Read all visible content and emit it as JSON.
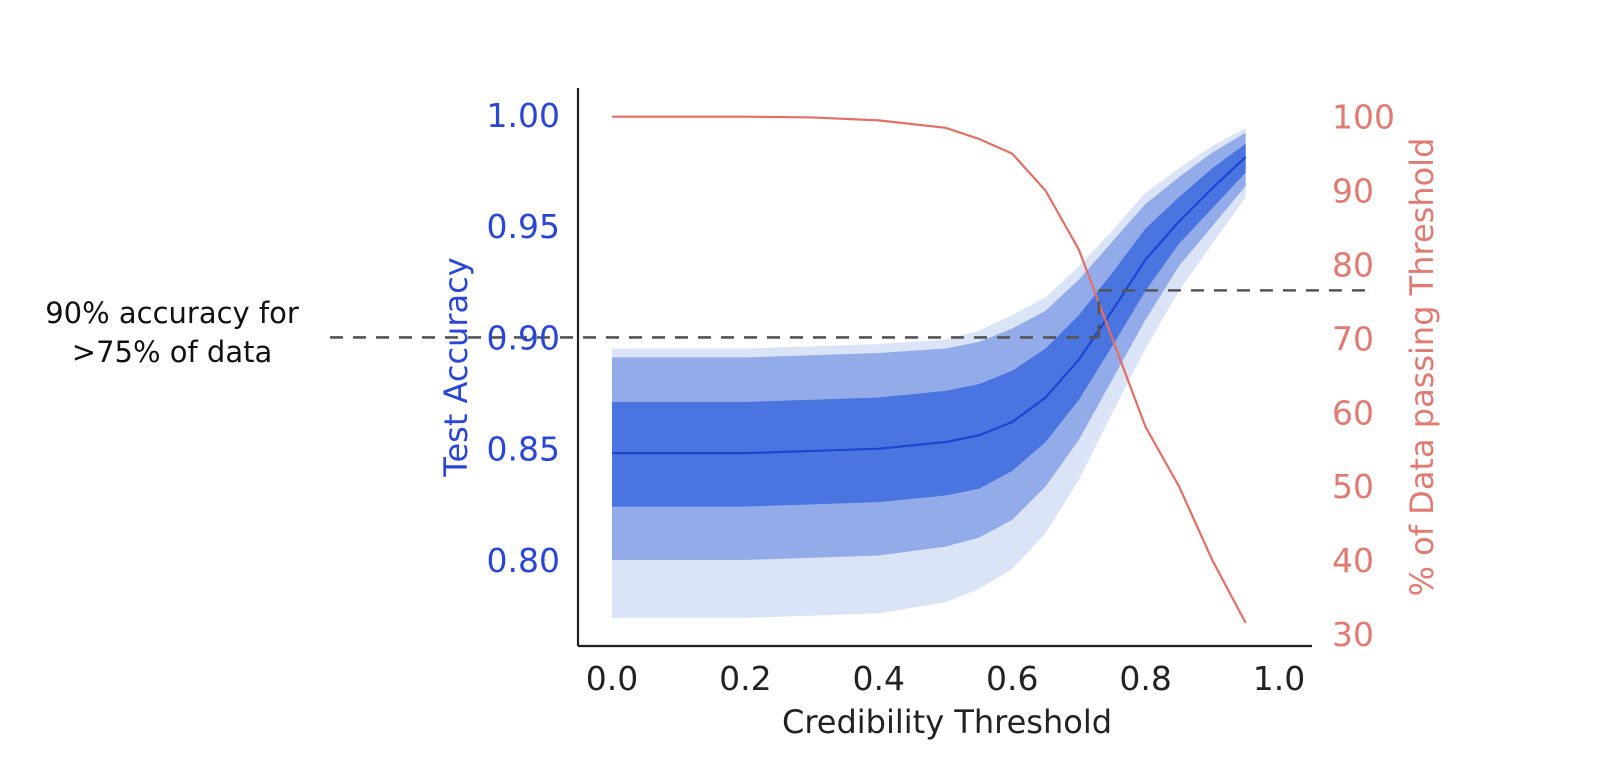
{
  "chart_data": {
    "type": "line",
    "xlabel": "Credibility Threshold",
    "ylabel_left": "Test Accuracy",
    "ylabel_right": "% of Data passing Threshold",
    "xlim": [
      -0.05,
      1.0
    ],
    "ylim_left": [
      0.77,
      1.0
    ],
    "ylim_right": [
      30,
      100
    ],
    "x_ticks": [
      "0.0",
      "0.2",
      "0.4",
      "0.6",
      "0.8",
      "1.0"
    ],
    "x_tick_values": [
      0.0,
      0.2,
      0.4,
      0.6,
      0.8,
      1.0
    ],
    "y_left_ticks": [
      "0.80",
      "0.85",
      "0.90",
      "0.95",
      "1.00"
    ],
    "y_left_tick_values": [
      0.8,
      0.85,
      0.9,
      0.95,
      1.0
    ],
    "y_right_ticks": [
      "30",
      "40",
      "50",
      "60",
      "70",
      "80",
      "90",
      "100"
    ],
    "y_right_tick_values": [
      30,
      40,
      50,
      60,
      70,
      80,
      90,
      100
    ],
    "grid": false,
    "x": [
      0.0,
      0.1,
      0.2,
      0.3,
      0.4,
      0.5,
      0.55,
      0.6,
      0.65,
      0.7,
      0.75,
      0.8,
      0.85,
      0.9,
      0.95
    ],
    "series": [
      {
        "name": "Test Accuracy",
        "axis": "left",
        "values": [
          0.848,
          0.848,
          0.848,
          0.849,
          0.85,
          0.853,
          0.856,
          0.862,
          0.873,
          0.89,
          0.912,
          0.935,
          0.952,
          0.967,
          0.981
        ],
        "band_inner_low": [
          0.824,
          0.824,
          0.824,
          0.825,
          0.826,
          0.829,
          0.832,
          0.84,
          0.853,
          0.872,
          0.896,
          0.921,
          0.942,
          0.958,
          0.974
        ],
        "band_inner_high": [
          0.871,
          0.871,
          0.871,
          0.872,
          0.873,
          0.876,
          0.879,
          0.885,
          0.895,
          0.91,
          0.929,
          0.949,
          0.963,
          0.976,
          0.987
        ],
        "band_mid_low": [
          0.8,
          0.8,
          0.8,
          0.801,
          0.802,
          0.806,
          0.81,
          0.818,
          0.833,
          0.854,
          0.881,
          0.908,
          0.932,
          0.95,
          0.968
        ],
        "band_mid_high": [
          0.891,
          0.891,
          0.891,
          0.892,
          0.893,
          0.895,
          0.898,
          0.904,
          0.912,
          0.926,
          0.943,
          0.96,
          0.972,
          0.983,
          0.992
        ],
        "band_outer_low": [
          0.774,
          0.774,
          0.774,
          0.775,
          0.776,
          0.781,
          0.787,
          0.796,
          0.812,
          0.836,
          0.866,
          0.895,
          0.921,
          0.942,
          0.963
        ],
        "band_outer_high": [
          0.895,
          0.895,
          0.895,
          0.896,
          0.897,
          0.899,
          0.903,
          0.91,
          0.918,
          0.932,
          0.948,
          0.965,
          0.976,
          0.986,
          0.994
        ]
      },
      {
        "name": "% of Data passing Threshold",
        "axis": "right",
        "values": [
          100,
          100,
          100,
          99.9,
          99.5,
          98.5,
          97,
          95,
          90,
          82,
          70,
          58,
          50,
          40,
          31.5
        ]
      }
    ],
    "reference_lines": [
      {
        "axis": "left",
        "y": 0.9,
        "x_from": -0.05,
        "x_to": 0.73
      },
      {
        "axis": "right",
        "y": 76.5,
        "x_from": 0.73,
        "x_to": 1.0
      },
      {
        "x": 0.73,
        "from_left_y": 0.9,
        "to_right_y": 76.5
      }
    ],
    "annotation": {
      "line1": "90% accuracy for",
      "line2": ">75% of data"
    }
  },
  "colors": {
    "accuracy_line": "#1c45d4",
    "band_inner": "#4a74df",
    "band_mid": "#93ace9",
    "band_outer": "#dbe3f7",
    "data_line": "#e26f66",
    "left_axis_text": "#2a46d6",
    "right_axis_text": "#e07a72",
    "axis_dark": "#222222",
    "reference": "#555555"
  }
}
